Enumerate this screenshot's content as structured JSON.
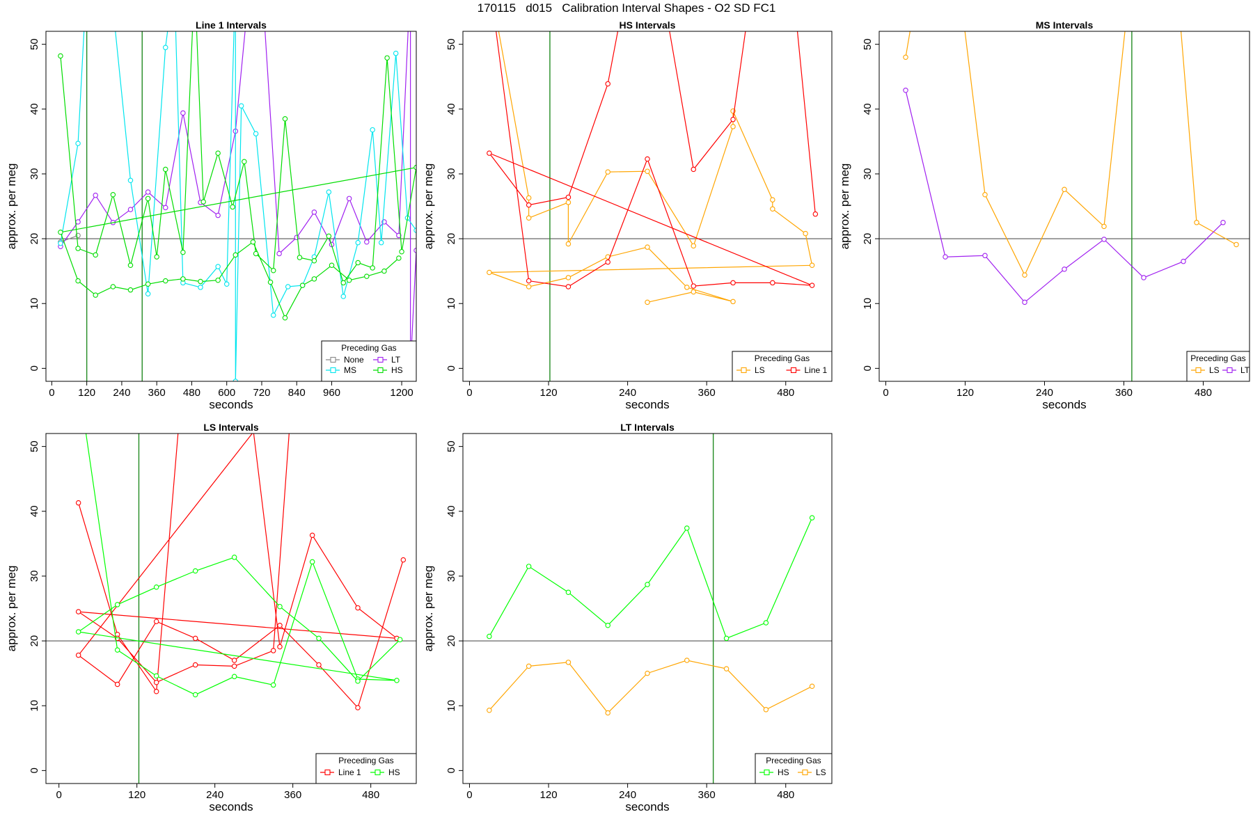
{
  "title": "170115   d015   Calibration Interval Shapes - O2 SD FC1",
  "chart_data": [
    {
      "type": "line",
      "title": "Line 1 Intervals",
      "xlabel": "seconds",
      "ylabel": "approx. per meg",
      "xlim": [
        -20,
        1250
      ],
      "ylim": [
        -2,
        52
      ],
      "xticks": [
        0,
        120,
        240,
        360,
        480,
        600,
        720,
        840,
        960,
        1200
      ],
      "yticks": [
        0,
        10,
        20,
        30,
        40,
        50
      ],
      "hline": 20,
      "vlines": [
        120,
        310
      ],
      "legend_title": "Preceding Gas",
      "legend_position": "bottom-right",
      "series": [
        {
          "name": "None",
          "color": "#888888",
          "points": [
            [
              30,
              19.5
            ],
            [
              90,
              20.5
            ]
          ]
        },
        {
          "name": "LT",
          "color": "#a020f0",
          "points": [
            [
              30,
              18.8
            ],
            [
              90,
              22.6
            ],
            [
              150,
              26.7
            ],
            [
              210,
              22.5
            ],
            [
              270,
              24.5
            ],
            [
              330,
              27.2
            ],
            [
              390,
              24.8
            ],
            [
              450,
              39.4
            ],
            [
              510,
              25.6
            ],
            [
              570,
              23.6
            ],
            [
              630,
              36.6
            ],
            [
              680,
              60
            ],
            [
              720,
              60
            ],
            [
              780,
              17.7
            ],
            [
              840,
              20.2
            ],
            [
              900,
              24.1
            ],
            [
              960,
              19.1
            ],
            [
              1020,
              26.2
            ],
            [
              1080,
              19.5
            ],
            [
              1140,
              22.6
            ],
            [
              1190,
              20.5
            ],
            [
              1230,
              60
            ],
            [
              1230,
              0
            ],
            [
              1250,
              18.2
            ]
          ]
        },
        {
          "name": "MS",
          "color": "#00e5ee",
          "points": [
            [
              30,
              19.3
            ],
            [
              90,
              34.7
            ],
            [
              120,
              60
            ],
            [
              200,
              60
            ],
            [
              270,
              29.0
            ],
            [
              330,
              11.5
            ],
            [
              390,
              49.5
            ],
            [
              420,
              60
            ],
            [
              450,
              13.2
            ],
            [
              510,
              12.5
            ],
            [
              570,
              15.7
            ],
            [
              600,
              13.0
            ],
            [
              630,
              60
            ],
            [
              630,
              -2
            ],
            [
              650,
              40.5
            ],
            [
              700,
              36.2
            ],
            [
              760,
              8.2
            ],
            [
              810,
              12.6
            ],
            [
              860,
              12.8
            ],
            [
              900,
              17.2
            ],
            [
              950,
              27.2
            ],
            [
              1000,
              11.1
            ],
            [
              1050,
              19.4
            ],
            [
              1100,
              36.8
            ],
            [
              1130,
              19.4
            ],
            [
              1180,
              48.6
            ],
            [
              1220,
              23.2
            ],
            [
              1250,
              21.3
            ]
          ]
        },
        {
          "name": "HS",
          "color": "#00dd00",
          "points": [
            [
              30,
              48.2
            ],
            [
              90,
              18.5
            ],
            [
              150,
              17.5
            ],
            [
              210,
              26.8
            ],
            [
              270,
              15.9
            ],
            [
              330,
              26.2
            ],
            [
              360,
              17.2
            ],
            [
              390,
              30.7
            ],
            [
              450,
              17.9
            ],
            [
              490,
              60
            ],
            [
              520,
              25.7
            ],
            [
              570,
              33.2
            ],
            [
              620,
              24.9
            ],
            [
              660,
              31.9
            ],
            [
              700,
              17.7
            ],
            [
              760,
              15.1
            ],
            [
              800,
              38.5
            ],
            [
              850,
              17.1
            ],
            [
              900,
              16.6
            ],
            [
              950,
              20.4
            ],
            [
              1000,
              13.2
            ],
            [
              1050,
              16.3
            ],
            [
              1100,
              15.5
            ],
            [
              1150,
              47.9
            ],
            [
              1200,
              18.0
            ],
            [
              1250,
              31.0
            ],
            [
              30,
              21.0
            ],
            [
              90,
              13.5
            ],
            [
              150,
              11.3
            ],
            [
              210,
              12.6
            ],
            [
              270,
              12.1
            ],
            [
              330,
              13.0
            ],
            [
              390,
              13.5
            ],
            [
              450,
              13.8
            ],
            [
              510,
              13.4
            ],
            [
              570,
              13.6
            ],
            [
              630,
              17.5
            ],
            [
              690,
              19.5
            ],
            [
              750,
              13.3
            ],
            [
              800,
              7.8
            ],
            [
              860,
              12.8
            ],
            [
              900,
              13.8
            ],
            [
              960,
              15.9
            ],
            [
              1020,
              13.6
            ],
            [
              1080,
              14.2
            ],
            [
              1140,
              15.0
            ],
            [
              1190,
              17.0
            ]
          ]
        }
      ]
    },
    {
      "type": "line",
      "title": "HS Intervals",
      "xlabel": "seconds",
      "ylabel": "approx. per meg",
      "xlim": [
        -10,
        550
      ],
      "ylim": [
        -2,
        52
      ],
      "xticks": [
        0,
        120,
        240,
        360,
        480
      ],
      "yticks": [
        0,
        10,
        20,
        30,
        40,
        50
      ],
      "hline": 20,
      "vlines": [
        122
      ],
      "legend_title": "Preceding Gas",
      "legend_position": "bottom-right",
      "series": [
        {
          "name": "LS",
          "color": "#ffa500",
          "points": [
            [
              30,
              60
            ],
            [
              90,
              26.3
            ],
            [
              90,
              23.2
            ],
            [
              150,
              25.6
            ],
            [
              150,
              19.2
            ],
            [
              210,
              30.3
            ],
            [
              270,
              30.4
            ],
            [
              340,
              18.9
            ],
            [
              400,
              37.3
            ],
            [
              400,
              39.7
            ],
            [
              460,
              26.0
            ],
            [
              460,
              24.6
            ],
            [
              510,
              20.8
            ],
            [
              520,
              15.9
            ],
            [
              30,
              14.8
            ],
            [
              90,
              12.6
            ],
            [
              150,
              14.0
            ],
            [
              210,
              17.2
            ],
            [
              270,
              18.7
            ],
            [
              330,
              12.5
            ],
            [
              400,
              10.3
            ],
            [
              340,
              11.8
            ],
            [
              270,
              10.2
            ]
          ]
        },
        {
          "name": "Line 1",
          "color": "#ff0000",
          "points": [
            [
              30,
              60
            ],
            [
              90,
              13.5
            ],
            [
              150,
              12.6
            ],
            [
              210,
              16.4
            ],
            [
              270,
              32.3
            ],
            [
              340,
              12.7
            ],
            [
              400,
              13.2
            ],
            [
              460,
              13.2
            ],
            [
              520,
              12.8
            ],
            [
              30,
              33.2
            ],
            [
              90,
              25.2
            ],
            [
              150,
              26.4
            ],
            [
              210,
              43.9
            ],
            [
              240,
              60
            ],
            [
              290,
              60
            ],
            [
              340,
              30.7
            ],
            [
              400,
              38.4
            ],
            [
              430,
              60
            ],
            [
              490,
              60
            ],
            [
              525,
              23.8
            ]
          ]
        }
      ]
    },
    {
      "type": "line",
      "title": "MS Intervals",
      "xlabel": "seconds",
      "ylabel": "approx. per meg",
      "xlim": [
        -10,
        550
      ],
      "ylim": [
        -2,
        52
      ],
      "xticks": [
        0,
        120,
        240,
        360,
        480
      ],
      "yticks": [
        0,
        10,
        20,
        30,
        40,
        50
      ],
      "hline": 20,
      "vlines": [
        372
      ],
      "legend_title": "Preceding Gas",
      "legend_position": "bottom-right",
      "series": [
        {
          "name": "LS",
          "color": "#ffa500",
          "points": [
            [
              30,
              48.0
            ],
            [
              50,
              60
            ],
            [
              110,
              60
            ],
            [
              150,
              26.8
            ],
            [
              210,
              14.4
            ],
            [
              270,
              27.6
            ],
            [
              330,
              21.9
            ],
            [
              370,
              60
            ],
            [
              440,
              60
            ],
            [
              470,
              22.5
            ],
            [
              530,
              19.1
            ]
          ]
        },
        {
          "name": "LT",
          "color": "#a020f0",
          "points": [
            [
              30,
              42.9
            ],
            [
              90,
              17.2
            ],
            [
              150,
              17.4
            ],
            [
              210,
              10.2
            ],
            [
              270,
              15.3
            ],
            [
              330,
              19.9
            ],
            [
              390,
              14.0
            ],
            [
              450,
              16.5
            ],
            [
              510,
              22.5
            ]
          ]
        }
      ]
    },
    {
      "type": "line",
      "title": "LS Intervals",
      "xlabel": "seconds",
      "ylabel": "approx. per meg",
      "xlim": [
        -20,
        550
      ],
      "ylim": [
        -2,
        52
      ],
      "xticks": [
        0,
        120,
        240,
        360,
        480
      ],
      "yticks": [
        0,
        10,
        20,
        30,
        40,
        50
      ],
      "hline": 20,
      "vlines": [
        123
      ],
      "legend_title": "Preceding Gas",
      "legend_position": "bottom-right",
      "series": [
        {
          "name": "Line 1",
          "color": "#ff0000",
          "points": [
            [
              30,
              41.3
            ],
            [
              90,
              21.0
            ],
            [
              150,
              12.2
            ],
            [
              190,
              60
            ],
            [
              290,
              60
            ],
            [
              340,
              19.1
            ],
            [
              390,
              36.3
            ],
            [
              460,
              25.1
            ],
            [
              520,
              20.4
            ],
            [
              30,
              24.5
            ],
            [
              90,
              20.4
            ],
            [
              150,
              13.6
            ],
            [
              210,
              16.3
            ],
            [
              270,
              16.1
            ],
            [
              330,
              18.5
            ],
            [
              360,
              60
            ],
            [
              30,
              17.8
            ],
            [
              90,
              13.3
            ],
            [
              150,
              23.0
            ],
            [
              210,
              20.4
            ],
            [
              270,
              17.0
            ],
            [
              340,
              22.4
            ],
            [
              400,
              16.3
            ],
            [
              460,
              9.7
            ],
            [
              530,
              32.5
            ]
          ]
        },
        {
          "name": "HS",
          "color": "#00ff00",
          "points": [
            [
              30,
              60
            ],
            [
              90,
              18.6
            ],
            [
              150,
              14.6
            ],
            [
              210,
              11.7
            ],
            [
              270,
              14.5
            ],
            [
              330,
              13.2
            ],
            [
              390,
              32.2
            ],
            [
              460,
              14.1
            ],
            [
              520,
              13.9
            ],
            [
              30,
              21.4
            ],
            [
              90,
              25.6
            ],
            [
              150,
              28.3
            ],
            [
              210,
              30.8
            ],
            [
              270,
              32.9
            ],
            [
              340,
              25.3
            ],
            [
              400,
              20.4
            ],
            [
              460,
              13.8
            ],
            [
              525,
              20.2
            ]
          ]
        }
      ]
    },
    {
      "type": "line",
      "title": "LT Intervals",
      "xlabel": "seconds",
      "ylabel": "approx. per meg",
      "xlim": [
        -10,
        550
      ],
      "ylim": [
        -2,
        52
      ],
      "xticks": [
        0,
        120,
        240,
        360,
        480
      ],
      "yticks": [
        0,
        10,
        20,
        30,
        40,
        50
      ],
      "hline": 20,
      "vlines": [
        370
      ],
      "legend_title": "Preceding Gas",
      "legend_position": "bottom-right",
      "series": [
        {
          "name": "HS",
          "color": "#00ff00",
          "points": [
            [
              30,
              20.7
            ],
            [
              90,
              31.5
            ],
            [
              150,
              27.5
            ],
            [
              210,
              22.4
            ],
            [
              270,
              28.7
            ],
            [
              330,
              37.4
            ],
            [
              390,
              20.4
            ],
            [
              450,
              22.8
            ],
            [
              520,
              39.0
            ]
          ]
        },
        {
          "name": "LS",
          "color": "#ffa500",
          "points": [
            [
              30,
              9.3
            ],
            [
              90,
              16.1
            ],
            [
              150,
              16.7
            ],
            [
              210,
              8.9
            ],
            [
              270,
              15.0
            ],
            [
              330,
              17.0
            ],
            [
              390,
              15.7
            ],
            [
              450,
              9.4
            ],
            [
              520,
              13.0
            ]
          ]
        }
      ]
    }
  ]
}
